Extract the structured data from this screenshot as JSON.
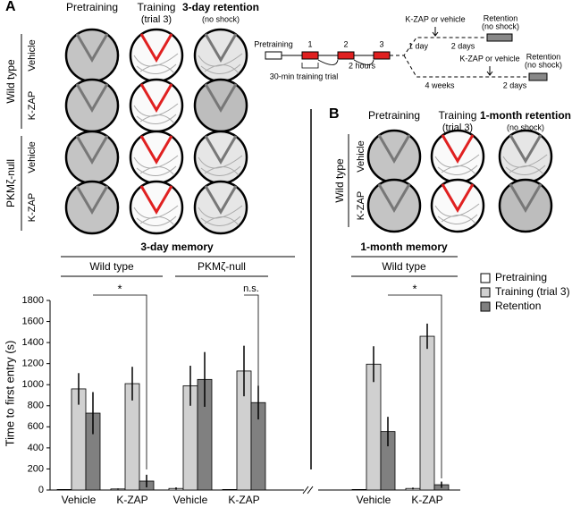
{
  "panel_a": {
    "label": "A",
    "columns": [
      "Pretraining",
      "Training",
      "(trial 3)",
      "3-day retention",
      "(no shock)"
    ],
    "rows": [
      "Wild type",
      "Vehicle",
      "K-ZAP",
      "PKMζ-null",
      "Vehicle",
      "K-ZAP"
    ]
  },
  "timeline": {
    "pretraining": "Pretraining",
    "trials": [
      "1",
      "2",
      "3"
    ],
    "trial_note": "30-min training trial",
    "interval": "2 hours",
    "upper": {
      "injection": "K-ZAP or vehicle",
      "delay1": "1 day",
      "delay2": "2 days",
      "end": "Retention",
      "end_note": "(no shock)"
    },
    "lower": {
      "injection": "K-ZAP or vehicle",
      "delay1": "4 weeks",
      "delay2": "2 days",
      "end": "Retention",
      "end_note": "(no shock)"
    }
  },
  "panel_b": {
    "label": "B",
    "columns": [
      "Pretraining",
      "Training",
      "(trial 3)",
      "1-month retention",
      "(no shock)"
    ],
    "rows": [
      "Wild type",
      "Vehicle",
      "K-ZAP"
    ]
  },
  "chart_data": [
    {
      "type": "bar",
      "title": "3-day memory",
      "groups": [
        "Wild type",
        "PKMζ-null"
      ],
      "annotations": [
        "*",
        "n.s."
      ],
      "y_label": "Time to first entry (s)",
      "categories": [
        "Vehicle",
        "K-ZAP",
        "Vehicle",
        "K-ZAP"
      ],
      "ylim": [
        0,
        1800
      ],
      "yticks": [
        0,
        200,
        400,
        600,
        800,
        1000,
        1200,
        1400,
        1600,
        1800
      ],
      "series": [
        {
          "name": "Pretraining",
          "color": "#ffffff",
          "values": [
            5,
            10,
            15,
            5
          ],
          "errors": [
            3,
            5,
            10,
            3
          ]
        },
        {
          "name": "Training (trial 3)",
          "color": "#d0d0d0",
          "values": [
            960,
            1010,
            990,
            1130
          ],
          "errors": [
            150,
            160,
            190,
            240
          ]
        },
        {
          "name": "Retention",
          "color": "#808080",
          "values": [
            730,
            85,
            1050,
            830
          ],
          "errors": [
            200,
            60,
            260,
            160
          ]
        }
      ]
    },
    {
      "type": "bar",
      "title": "1-month memory",
      "groups": [
        "Wild type"
      ],
      "annotations": [
        "*"
      ],
      "categories": [
        "Vehicle",
        "K-ZAP"
      ],
      "ylim": [
        0,
        1800
      ],
      "series": [
        {
          "name": "Pretraining",
          "color": "#ffffff",
          "values": [
            5,
            15
          ],
          "errors": [
            3,
            8
          ]
        },
        {
          "name": "Training (trial 3)",
          "color": "#d0d0d0",
          "values": [
            1195,
            1460
          ],
          "errors": [
            170,
            120
          ]
        },
        {
          "name": "Retention",
          "color": "#808080",
          "values": [
            555,
            50
          ],
          "errors": [
            140,
            30
          ]
        }
      ]
    }
  ]
}
